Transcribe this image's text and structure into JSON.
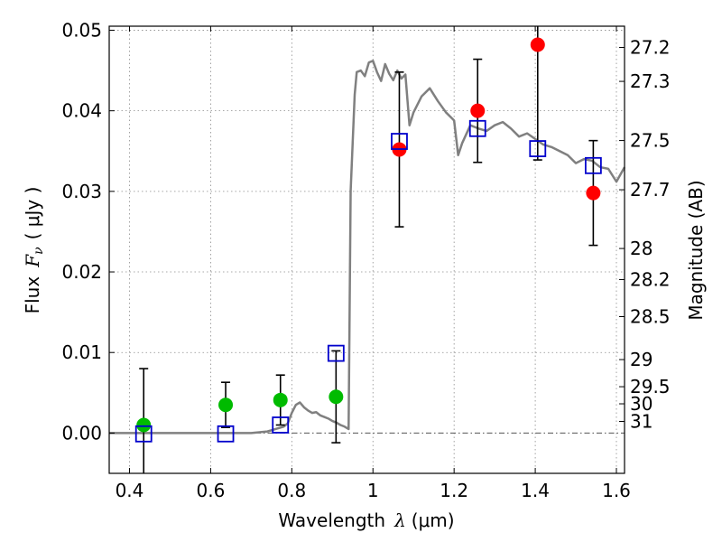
{
  "chart_data": {
    "type": "scatter",
    "xlabel": {
      "prefix": "Wavelength",
      "symbol": "λ",
      "unit": "(μm)"
    },
    "ylabel": {
      "prefix": "Flux",
      "symbol": "F",
      "subscript": "ν",
      "unit": "( μJy )"
    },
    "y2label": "Magnitude (AB)",
    "xlim": [
      0.35,
      1.62
    ],
    "ylim": [
      -0.005,
      0.0505
    ],
    "grid": true,
    "x_ticks": [
      {
        "value": 0.4,
        "label": "0.4"
      },
      {
        "value": 0.6,
        "label": "0.6"
      },
      {
        "value": 0.8,
        "label": "0.8"
      },
      {
        "value": 1.0,
        "label": "1"
      },
      {
        "value": 1.2,
        "label": "1.2"
      },
      {
        "value": 1.4,
        "label": "1.4"
      },
      {
        "value": 1.6,
        "label": "1.6"
      }
    ],
    "y_ticks": [
      {
        "value": 0.0,
        "label": "0.00"
      },
      {
        "value": 0.01,
        "label": "0.01"
      },
      {
        "value": 0.02,
        "label": "0.02"
      },
      {
        "value": 0.03,
        "label": "0.03"
      },
      {
        "value": 0.04,
        "label": "0.04"
      },
      {
        "value": 0.05,
        "label": "0.05"
      }
    ],
    "y2_ticks": [
      {
        "mag": 27.2,
        "label": "27.2"
      },
      {
        "mag": 27.3,
        "label": "27.3"
      },
      {
        "mag": 27.5,
        "label": "27.5"
      },
      {
        "mag": 27.7,
        "label": "27.7"
      },
      {
        "mag": 28,
        "label": "28"
      },
      {
        "mag": 28.2,
        "label": "28.2"
      },
      {
        "mag": 28.5,
        "label": "28.5"
      },
      {
        "mag": 29,
        "label": "29"
      },
      {
        "mag": 29.5,
        "label": "29.5"
      },
      {
        "mag": 30,
        "label": "30"
      },
      {
        "mag": 31,
        "label": "31"
      }
    ],
    "series": [
      {
        "kind": "line",
        "color": "#808080",
        "points": [
          [
            0.35,
            0.0
          ],
          [
            0.7,
            0.0
          ],
          [
            0.74,
            0.0002
          ],
          [
            0.76,
            0.0005
          ],
          [
            0.78,
            0.0008
          ],
          [
            0.79,
            0.0012
          ],
          [
            0.8,
            0.0025
          ],
          [
            0.81,
            0.0035
          ],
          [
            0.82,
            0.0038
          ],
          [
            0.83,
            0.0032
          ],
          [
            0.84,
            0.0028
          ],
          [
            0.85,
            0.0025
          ],
          [
            0.86,
            0.0026
          ],
          [
            0.87,
            0.0022
          ],
          [
            0.88,
            0.002
          ],
          [
            0.89,
            0.0018
          ],
          [
            0.9,
            0.0015
          ],
          [
            0.91,
            0.0013
          ],
          [
            0.92,
            0.001
          ],
          [
            0.93,
            0.0008
          ],
          [
            0.94,
            0.0005
          ],
          [
            0.945,
            0.03
          ],
          [
            0.95,
            0.036
          ],
          [
            0.955,
            0.042
          ],
          [
            0.96,
            0.0448
          ],
          [
            0.97,
            0.045
          ],
          [
            0.98,
            0.0443
          ],
          [
            0.99,
            0.046
          ],
          [
            1.0,
            0.0462
          ],
          [
            1.01,
            0.0448
          ],
          [
            1.02,
            0.0437
          ],
          [
            1.03,
            0.0458
          ],
          [
            1.04,
            0.0446
          ],
          [
            1.05,
            0.0438
          ],
          [
            1.06,
            0.045
          ],
          [
            1.07,
            0.044
          ],
          [
            1.08,
            0.0445
          ],
          [
            1.09,
            0.0382
          ],
          [
            1.1,
            0.0398
          ],
          [
            1.12,
            0.0418
          ],
          [
            1.14,
            0.0428
          ],
          [
            1.16,
            0.0412
          ],
          [
            1.18,
            0.0398
          ],
          [
            1.2,
            0.0388
          ],
          [
            1.21,
            0.0345
          ],
          [
            1.22,
            0.036
          ],
          [
            1.24,
            0.0382
          ],
          [
            1.26,
            0.0378
          ],
          [
            1.28,
            0.0375
          ],
          [
            1.3,
            0.0382
          ],
          [
            1.32,
            0.0386
          ],
          [
            1.34,
            0.0378
          ],
          [
            1.36,
            0.0368
          ],
          [
            1.38,
            0.0372
          ],
          [
            1.4,
            0.0365
          ],
          [
            1.42,
            0.0358
          ],
          [
            1.44,
            0.0355
          ],
          [
            1.46,
            0.035
          ],
          [
            1.48,
            0.0345
          ],
          [
            1.5,
            0.0335
          ],
          [
            1.52,
            0.034
          ],
          [
            1.54,
            0.0338
          ],
          [
            1.56,
            0.033
          ],
          [
            1.58,
            0.0328
          ],
          [
            1.6,
            0.0312
          ],
          [
            1.62,
            0.033
          ]
        ]
      },
      {
        "kind": "points",
        "marker": "circle",
        "color": "#00bb00",
        "points": [
          {
            "x": 0.435,
            "y": 0.001,
            "err": 0.007
          },
          {
            "x": 0.637,
            "y": 0.0035,
            "err": 0.0028
          },
          {
            "x": 0.772,
            "y": 0.0041,
            "err": 0.0031
          },
          {
            "x": 0.909,
            "y": 0.0045,
            "err": 0.0057
          }
        ]
      },
      {
        "kind": "points",
        "marker": "circle",
        "color": "#ff0000",
        "points": [
          {
            "x": 1.065,
            "y": 0.0352,
            "err": 0.0096
          },
          {
            "x": 1.258,
            "y": 0.04,
            "err": 0.0064
          },
          {
            "x": 1.406,
            "y": 0.0482,
            "err": 0.0143
          },
          {
            "x": 1.543,
            "y": 0.0298,
            "err": 0.0065
          }
        ]
      },
      {
        "kind": "points",
        "marker": "square",
        "color": "#0000cc",
        "points": [
          {
            "x": 0.435,
            "y": -0.0001
          },
          {
            "x": 0.637,
            "y": -0.0001
          },
          {
            "x": 0.772,
            "y": 0.001
          },
          {
            "x": 0.909,
            "y": 0.0099
          },
          {
            "x": 1.065,
            "y": 0.0362
          },
          {
            "x": 1.258,
            "y": 0.0378
          },
          {
            "x": 1.406,
            "y": 0.0353
          },
          {
            "x": 1.543,
            "y": 0.0332
          }
        ]
      }
    ]
  }
}
